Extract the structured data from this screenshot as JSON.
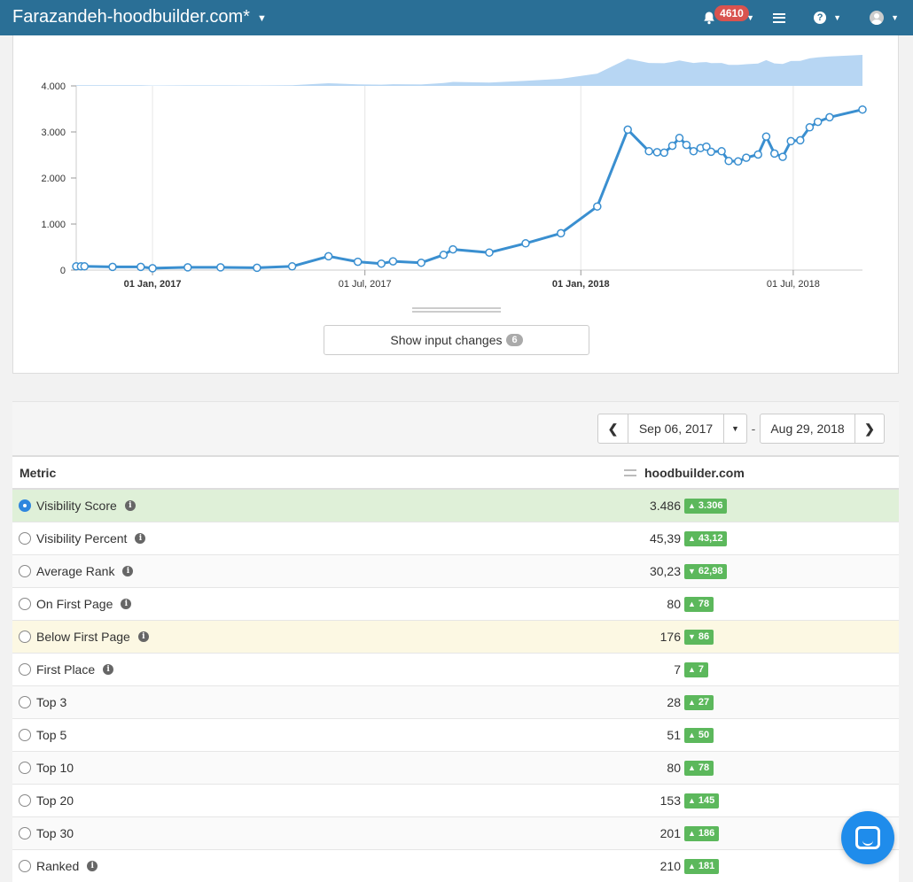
{
  "header": {
    "title": "Farazandeh-hoodbuilder.com*",
    "notifications_count": "4610"
  },
  "icons": {
    "bell": "bell-icon",
    "list": "list-icon",
    "help": "question-circle-icon",
    "user": "user-avatar-icon",
    "info": "info-circle-icon",
    "chat": "chat-icon"
  },
  "colors": {
    "header": "#2a6f96",
    "line": "#3a8fd0",
    "area": "#b7d6f3",
    "positive": "#5cb85c",
    "selected_row": "#dff0d8",
    "warning_row": "#fcf8e3"
  },
  "chart_data": {
    "type": "line",
    "ylim": [
      0,
      4000
    ],
    "y_ticks": [
      "0",
      "1.000",
      "2.000",
      "3.000",
      "4.000"
    ],
    "y_tick_values": [
      0,
      1000,
      2000,
      3000,
      4000
    ],
    "x_ticks": [
      {
        "label": "01 Jan, 2017",
        "date": "2017-01-01",
        "bold": true
      },
      {
        "label": "01 Jul, 2017",
        "date": "2017-07-01",
        "bold": false
      },
      {
        "label": "01 Jan, 2018",
        "date": "2018-01-01",
        "bold": true
      },
      {
        "label": "01 Jul, 2018",
        "date": "2018-07-01",
        "bold": false
      }
    ],
    "xlim": [
      "2016-10-28",
      "2018-08-29"
    ],
    "series": [
      {
        "points": [
          [
            "2016-10-28",
            80
          ],
          [
            "2016-11-01",
            80
          ],
          [
            "2016-11-04",
            80
          ],
          [
            "2016-11-28",
            70
          ],
          [
            "2016-12-22",
            70
          ],
          [
            "2017-01-01",
            40
          ],
          [
            "2017-01-31",
            60
          ],
          [
            "2017-02-28",
            60
          ],
          [
            "2017-03-31",
            50
          ],
          [
            "2017-04-30",
            80
          ],
          [
            "2017-05-31",
            300
          ],
          [
            "2017-06-25",
            180
          ],
          [
            "2017-07-15",
            140
          ],
          [
            "2017-07-25",
            190
          ],
          [
            "2017-08-18",
            160
          ],
          [
            "2017-09-06",
            330
          ],
          [
            "2017-09-14",
            450
          ],
          [
            "2017-10-15",
            380
          ],
          [
            "2017-11-15",
            580
          ],
          [
            "2017-12-15",
            800
          ],
          [
            "2018-01-15",
            1380
          ],
          [
            "2018-02-10",
            3050
          ],
          [
            "2018-02-28",
            2580
          ],
          [
            "2018-03-07",
            2560
          ],
          [
            "2018-03-13",
            2550
          ],
          [
            "2018-03-20",
            2700
          ],
          [
            "2018-03-26",
            2870
          ],
          [
            "2018-04-01",
            2720
          ],
          [
            "2018-04-07",
            2580
          ],
          [
            "2018-04-13",
            2650
          ],
          [
            "2018-04-18",
            2680
          ],
          [
            "2018-04-22",
            2570
          ],
          [
            "2018-05-01",
            2580
          ],
          [
            "2018-05-07",
            2370
          ],
          [
            "2018-05-15",
            2360
          ],
          [
            "2018-05-22",
            2440
          ],
          [
            "2018-06-01",
            2510
          ],
          [
            "2018-06-08",
            2900
          ],
          [
            "2018-06-15",
            2530
          ],
          [
            "2018-06-22",
            2460
          ],
          [
            "2018-06-29",
            2800
          ],
          [
            "2018-07-07",
            2820
          ],
          [
            "2018-07-15",
            3100
          ],
          [
            "2018-07-22",
            3220
          ],
          [
            "2018-08-01",
            3320
          ],
          [
            "2018-08-29",
            3486
          ]
        ]
      }
    ]
  },
  "show_changes": {
    "label": "Show input changes",
    "count": "6"
  },
  "date_range": {
    "from": "Sep 06, 2017",
    "separator": "-",
    "to": "Aug 29, 2018"
  },
  "table": {
    "headers": {
      "metric": "Metric",
      "domain": "hoodbuilder.com"
    },
    "rows": [
      {
        "label": "Visibility Score",
        "info": true,
        "value": "3.486",
        "delta": "3.306",
        "dir": "up",
        "style": "active",
        "checked": true
      },
      {
        "label": "Visibility Percent",
        "info": true,
        "value": "45,39",
        "delta": "43,12",
        "dir": "up",
        "style": "",
        "checked": false
      },
      {
        "label": "Average Rank",
        "info": true,
        "value": "30,23",
        "delta": "62,98",
        "dir": "down",
        "style": "alt",
        "checked": false
      },
      {
        "label": "On First Page",
        "info": true,
        "value": "80",
        "delta": "78",
        "dir": "up",
        "style": "",
        "checked": false
      },
      {
        "label": "Below First Page",
        "info": true,
        "value": "176",
        "delta": "86",
        "dir": "down",
        "style": "warn",
        "checked": false
      },
      {
        "label": "First Place",
        "info": true,
        "value": "7",
        "delta": "7",
        "dir": "up",
        "style": "",
        "checked": false
      },
      {
        "label": "Top 3",
        "info": false,
        "value": "28",
        "delta": "27",
        "dir": "up",
        "style": "alt",
        "checked": false
      },
      {
        "label": "Top 5",
        "info": false,
        "value": "51",
        "delta": "50",
        "dir": "up",
        "style": "",
        "checked": false
      },
      {
        "label": "Top 10",
        "info": false,
        "value": "80",
        "delta": "78",
        "dir": "up",
        "style": "alt",
        "checked": false
      },
      {
        "label": "Top 20",
        "info": false,
        "value": "153",
        "delta": "145",
        "dir": "up",
        "style": "",
        "checked": false
      },
      {
        "label": "Top 30",
        "info": false,
        "value": "201",
        "delta": "186",
        "dir": "up",
        "style": "alt",
        "checked": false
      },
      {
        "label": "Ranked",
        "info": true,
        "value": "210",
        "delta": "181",
        "dir": "up",
        "style": "",
        "checked": false
      }
    ]
  }
}
